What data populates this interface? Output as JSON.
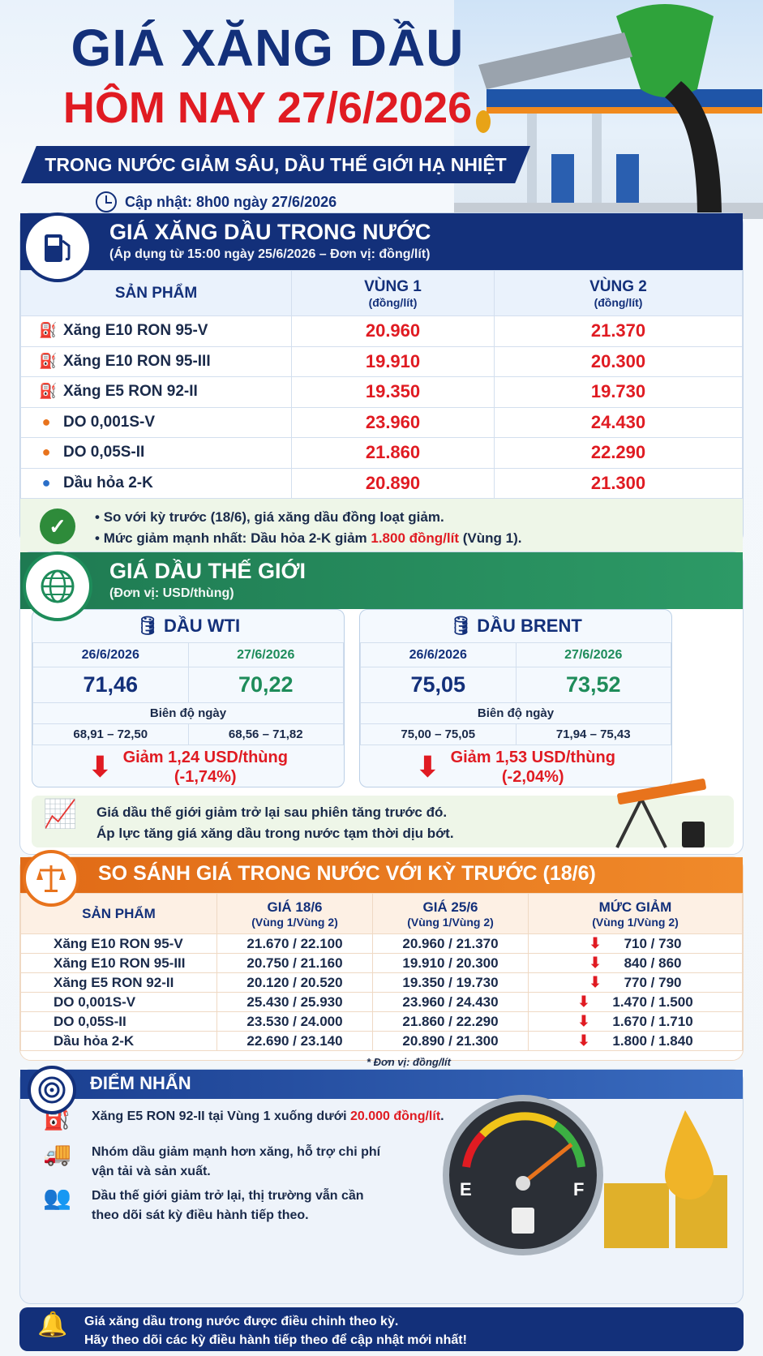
{
  "header": {
    "title_line1": "GIÁ XĂNG DẦU",
    "title_line2": "HÔM NAY 27/6/2026",
    "subtitle": "TRONG NƯỚC GIẢM SÂU, DẦU THẾ GIỚI HẠ NHIỆT",
    "updated": "Cập nhật: 8h00 ngày 27/6/2026"
  },
  "domestic": {
    "title": "GIÁ XĂNG DẦU TRONG NƯỚC",
    "subtitle": "(Áp dụng từ 15:00 ngày 25/6/2026 – Đơn vị: đồng/lít)",
    "col_product": "SẢN PHẨM",
    "col_r1": "VÙNG 1",
    "col_r1_unit": "(đồng/lít)",
    "col_r2": "VÙNG 2",
    "col_r2_unit": "(đồng/lít)",
    "rows": [
      {
        "name": "Xăng E10 RON 95-V",
        "r1": "20.960",
        "r2": "21.370",
        "icon": "fuel-pump-icon"
      },
      {
        "name": "Xăng E10 RON 95-III",
        "r1": "19.910",
        "r2": "20.300",
        "icon": "fuel-pump-icon"
      },
      {
        "name": "Xăng E5 RON 92-II",
        "r1": "19.350",
        "r2": "19.730",
        "icon": "fuel-pump-icon"
      },
      {
        "name": "DO 0,001S-V",
        "r1": "23.960",
        "r2": "24.430",
        "icon": "oil-drop-icon"
      },
      {
        "name": "DO 0,05S-II",
        "r1": "21.860",
        "r2": "22.290",
        "icon": "oil-drop-icon"
      },
      {
        "name": "Dầu hỏa 2-K",
        "r1": "20.890",
        "r2": "21.300",
        "icon": "water-drop-icon"
      }
    ],
    "note1": "So với kỳ trước (18/6), giá xăng dầu đồng loạt giảm.",
    "note2_pre": "Mức giảm mạnh nhất: Dầu hỏa 2-K giảm ",
    "note2_hl": "1.800 đồng/lít",
    "note2_post": " (Vùng 1)."
  },
  "world": {
    "title": "GIÁ DẦU THẾ GIỚI",
    "subtitle": "(Đơn vị: USD/thùng)",
    "range_label": "Biên độ ngày",
    "cards": [
      {
        "name": "DẦU WTI",
        "d1": "26/6/2026",
        "d2": "27/6/2026",
        "p1": "71,46",
        "p2": "70,22",
        "b1": "68,91 – 72,50",
        "b2": "68,56 – 71,82",
        "dec": "Giảm 1,24 USD/thùng",
        "pct": "(-1,74%)"
      },
      {
        "name": "DẦU BRENT",
        "d1": "26/6/2026",
        "d2": "27/6/2026",
        "p1": "75,05",
        "p2": "73,52",
        "b1": "75,00 – 75,05",
        "b2": "71,94 – 75,43",
        "dec": "Giảm 1,53 USD/thùng",
        "pct": "(-2,04%)"
      }
    ],
    "note1": "Giá dầu thế giới giảm trở lại sau phiên tăng trước đó.",
    "note2": "Áp lực tăng giá xăng dầu trong nước tạm thời dịu bớt."
  },
  "compare": {
    "title": "SO SÁNH GIÁ TRONG NƯỚC VỚI KỲ TRƯỚC (18/6)",
    "col_product": "SẢN PHẨM",
    "col_a": "GIÁ 18/6",
    "col_b": "GIÁ 25/6",
    "col_c": "MỨC GIẢM",
    "col_unit": "(Vùng 1/Vùng 2)",
    "rows": [
      {
        "name": "Xăng E10 RON 95-V",
        "a": "21.670 / 22.100",
        "b": "20.960 / 21.370",
        "c": "710 / 730"
      },
      {
        "name": "Xăng E10 RON 95-III",
        "a": "20.750 / 21.160",
        "b": "19.910 / 20.300",
        "c": "840 / 860"
      },
      {
        "name": "Xăng E5 RON 92-II",
        "a": "20.120 / 20.520",
        "b": "19.350 / 19.730",
        "c": "770 / 790"
      },
      {
        "name": "DO 0,001S-V",
        "a": "25.430 / 25.930",
        "b": "23.960 / 24.430",
        "c": "1.470 / 1.500"
      },
      {
        "name": "DO 0,05S-II",
        "a": "23.530 / 24.000",
        "b": "21.860 / 22.290",
        "c": "1.670 / 1.710"
      },
      {
        "name": "Dầu hỏa 2-K",
        "a": "22.690 / 23.140",
        "b": "20.890 / 21.300",
        "c": "1.800 / 1.840"
      }
    ],
    "footnote": "* Đơn vị: đồng/lít"
  },
  "highlights": {
    "title": "ĐIỂM NHẤN",
    "h1_pre": "Xăng E5 RON 92-II tại Vùng 1 xuống dưới ",
    "h1_hl": "20.000 đồng/lít",
    "h1_post": ".",
    "h2a": "Nhóm dầu giảm mạnh hơn xăng, hỗ trợ chi phí",
    "h2b": "vận tải và sản xuất.",
    "h3a": "Dầu thế giới giảm trở lại, thị trường vẫn cần",
    "h3b": "theo dõi sát kỳ điều hành tiếp theo.",
    "gauge_e": "E",
    "gauge_f": "F"
  },
  "footer": {
    "line1": "Giá xăng dầu trong nước được điều chỉnh theo kỳ.",
    "line2": "Hãy theo dõi các kỳ điều hành tiếp theo để cập nhật mới nhất!"
  },
  "colors": {
    "navy": "#13307a",
    "red": "#e01b22",
    "green": "#1e8c5a",
    "orange": "#e8731c"
  }
}
